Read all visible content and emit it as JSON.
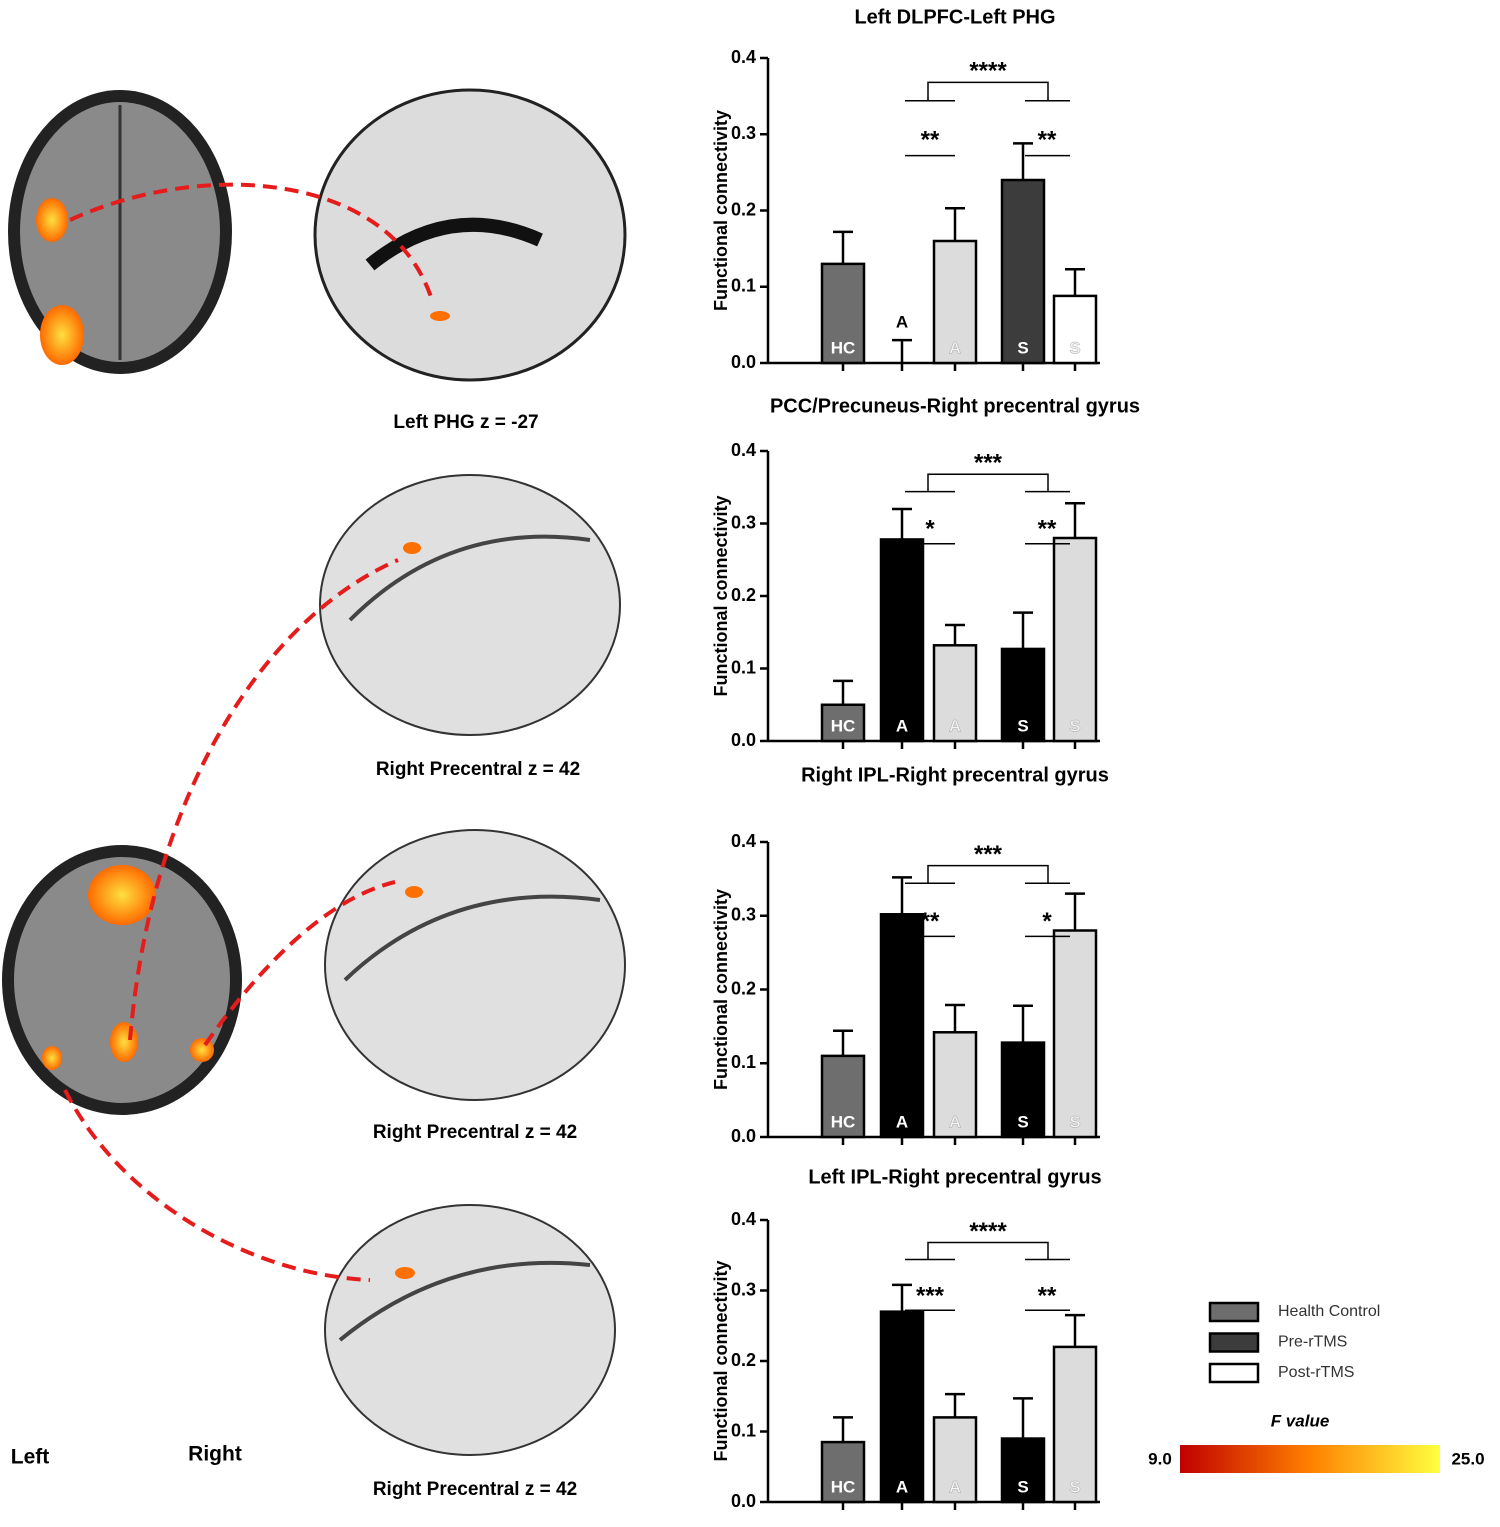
{
  "chart_data": [
    {
      "type": "bar",
      "title": "Left DLPFC-Left PHG",
      "ylabel": "Functional connectivity",
      "categories": [
        "HC",
        "A",
        "A",
        "S",
        "S"
      ],
      "values": [
        0.13,
        0,
        0.16,
        0.24,
        0.088
      ],
      "errors": [
        0.042,
        0.03,
        0.043,
        0.048,
        0.035
      ],
      "colors": [
        "#6e6e6e",
        "#3c3c3c",
        "#dcdcdc",
        "#3c3c3c",
        "#ffffff"
      ],
      "annotations": [
        "****",
        "**",
        "**"
      ],
      "ylim": [
        0,
        0.4
      ],
      "yticks": [
        {
          "value": 0,
          "label": "0.0"
        },
        0.1,
        0.2,
        0.3,
        0.4
      ]
    },
    {
      "type": "bar",
      "title": "PCC/Precuneus-Right precentral gyrus",
      "ylabel": "Functional connectivity",
      "categories": [
        "HC",
        "A",
        "A",
        "S",
        "S"
      ],
      "values": [
        0.05,
        0.278,
        0.132,
        0.127,
        0.28
      ],
      "errors": [
        0.033,
        0.042,
        0.028,
        0.05,
        0.048
      ],
      "colors": [
        "#6e6e6e",
        "#000000",
        "#dcdcdc",
        "#000000",
        "#dcdcdc"
      ],
      "annotations": [
        "***",
        "*",
        "**"
      ],
      "ylim": [
        0,
        0.4
      ],
      "yticks": [
        {
          "value": 0,
          "label": "0.0"
        },
        0.1,
        0.2,
        0.3,
        0.4
      ]
    },
    {
      "type": "bar",
      "title": "Right IPL-Right precentral gyrus",
      "ylabel": "Functional connectivity",
      "categories": [
        "HC",
        "A",
        "A",
        "S",
        "S"
      ],
      "values": [
        0.11,
        0.302,
        0.142,
        0.128,
        0.28
      ],
      "errors": [
        0.034,
        0.05,
        0.037,
        0.05,
        0.05
      ],
      "colors": [
        "#6e6e6e",
        "#000000",
        "#dcdcdc",
        "#000000",
        "#dcdcdc"
      ],
      "annotations": [
        "***",
        "**",
        "*"
      ],
      "ylim": [
        0,
        0.4
      ],
      "yticks": [
        {
          "value": 0,
          "label": "0.0"
        },
        0.1,
        0.2,
        0.3,
        0.4
      ]
    },
    {
      "type": "bar",
      "title": "Left IPL-Right precentral gyrus",
      "ylabel": "Functional connectivity",
      "categories": [
        "HC",
        "A",
        "A",
        "S",
        "S"
      ],
      "values": [
        0.085,
        0.27,
        0.12,
        0.09,
        0.22
      ],
      "errors": [
        0.035,
        0.038,
        0.033,
        0.057,
        0.045
      ],
      "colors": [
        "#6e6e6e",
        "#000000",
        "#dcdcdc",
        "#000000",
        "#dcdcdc"
      ],
      "annotations": [
        "****",
        "***",
        "**"
      ],
      "ylim": [
        0,
        0.4
      ],
      "yticks": [
        {
          "value": 0,
          "label": "0.0"
        },
        0.1,
        0.2,
        0.3,
        0.4
      ]
    }
  ],
  "legend": [
    {
      "name": "Health Control",
      "color": "#6e6e6e"
    },
    {
      "name": "Pre-rTMS",
      "color": "#3c3c3c"
    },
    {
      "name": "Post-rTMS",
      "color": "#ffffff"
    }
  ],
  "colorbar": {
    "title": "F value",
    "min_label": "9.0",
    "max_label": "25.0"
  },
  "brain_labels": [
    "Left PHG  z = -27",
    "Right Precentral  z = 42",
    "Right Precentral  z = 42",
    "Right Precentral  z = 42",
    "Left",
    "Right"
  ]
}
